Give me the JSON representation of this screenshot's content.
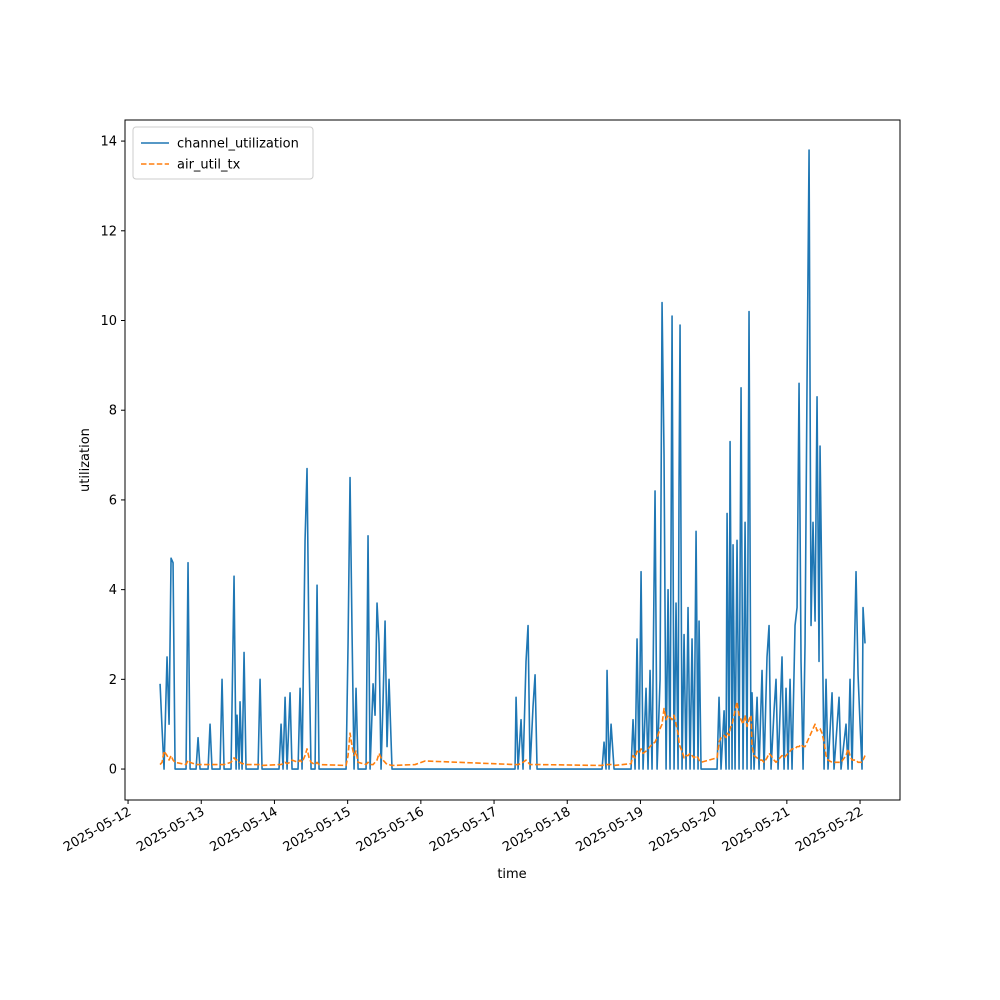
{
  "chart_data": {
    "type": "line",
    "xlabel": "time",
    "ylabel": "utilization",
    "legend": "upper left",
    "xlim": [
      "2025-05-11 23:00",
      "2025-05-22 13:06"
    ],
    "xticks": [
      "2025-05-12",
      "2025-05-13",
      "2025-05-14",
      "2025-05-15",
      "2025-05-16",
      "2025-05-17",
      "2025-05-18",
      "2025-05-19",
      "2025-05-20",
      "2025-05-21",
      "2025-05-22"
    ],
    "ylim": [
      -0.69,
      14.47
    ],
    "yticks": [
      0,
      2,
      4,
      6,
      8,
      10,
      12,
      14
    ],
    "x": [
      "2025-05-12 10:30",
      "2025-05-12 11:09",
      "2025-05-12 11:48",
      "2025-05-12 12:47",
      "2025-05-12 13:27",
      "2025-05-12 14:06",
      "2025-05-12 14:45",
      "2025-05-12 15:25",
      "2025-05-12 19:01",
      "2025-05-12 19:40",
      "2025-05-12 20:20",
      "2025-05-12 22:18",
      "2025-05-12 22:57",
      "2025-05-12 23:36",
      "2025-05-13 02:14",
      "2025-05-13 02:53",
      "2025-05-13 03:32",
      "2025-05-13 06:10",
      "2025-05-13 06:49",
      "2025-05-13 07:29",
      "2025-05-13 09:46",
      "2025-05-13 10:45",
      "2025-05-13 11:25",
      "2025-05-13 11:44",
      "2025-05-13 12:24",
      "2025-05-13 12:43",
      "2025-05-13 13:23",
      "2025-05-13 14:02",
      "2025-05-13 14:41",
      "2025-05-13 18:37",
      "2025-05-13 19:17",
      "2025-05-13 19:56",
      "2025-05-14 01:30",
      "2025-05-14 02:10",
      "2025-05-14 02:49",
      "2025-05-14 03:29",
      "2025-05-14 04:08",
      "2025-05-14 05:07",
      "2025-05-14 05:46",
      "2025-05-14 07:44",
      "2025-05-14 08:24",
      "2025-05-14 09:03",
      "2025-05-14 10:02",
      "2025-05-14 10:41",
      "2025-05-14 11:21",
      "2025-05-14 12:00",
      "2025-05-14 13:19",
      "2025-05-14 13:58",
      "2025-05-14 14:37",
      "2025-05-14 23:29",
      "2025-05-15 00:08",
      "2025-05-15 00:47",
      "2025-05-15 01:27",
      "2025-05-15 02:06",
      "2025-05-15 02:45",
      "2025-05-15 03:25",
      "2025-05-15 06:02",
      "2025-05-15 06:41",
      "2025-05-15 07:21",
      "2025-05-15 08:20",
      "2025-05-15 08:59",
      "2025-05-15 09:38",
      "2025-05-15 10:18",
      "2025-05-15 10:57",
      "2025-05-15 11:36",
      "2025-05-15 12:16",
      "2025-05-15 12:55",
      "2025-05-15 13:34",
      "2025-05-15 14:33",
      "2025-05-15 22:06",
      "2025-05-16 01:23",
      "2025-05-17 06:53",
      "2025-05-17 07:13",
      "2025-05-17 07:52",
      "2025-05-17 08:51",
      "2025-05-17 09:30",
      "2025-05-17 10:29",
      "2025-05-17 11:09",
      "2025-05-17 11:48",
      "2025-05-17 12:47",
      "2025-05-17 13:27",
      "2025-05-17 14:06",
      "2025-05-18 11:25",
      "2025-05-18 12:04",
      "2025-05-18 12:43",
      "2025-05-18 13:03",
      "2025-05-18 13:42",
      "2025-05-18 14:22",
      "2025-05-18 15:21",
      "2025-05-18 20:55",
      "2025-05-18 21:34",
      "2025-05-18 22:14",
      "2025-05-18 22:53",
      "2025-05-18 23:32",
      "2025-05-19 00:12",
      "2025-05-19 00:51",
      "2025-05-19 01:50",
      "2025-05-19 02:29",
      "2025-05-19 03:09",
      "2025-05-19 03:48",
      "2025-05-19 04:47",
      "2025-05-19 05:27",
      "2025-05-19 06:26",
      "2025-05-19 07:05",
      "2025-05-19 07:44",
      "2025-05-19 08:24",
      "2025-05-19 09:03",
      "2025-05-19 09:42",
      "2025-05-19 10:22",
      "2025-05-19 11:01",
      "2025-05-19 11:40",
      "2025-05-19 12:20",
      "2025-05-19 12:39",
      "2025-05-19 12:59",
      "2025-05-19 13:38",
      "2025-05-19 14:18",
      "2025-05-19 14:57",
      "2025-05-19 15:36",
      "2025-05-19 16:16",
      "2025-05-19 16:55",
      "2025-05-19 17:34",
      "2025-05-19 18:14",
      "2025-05-19 18:53",
      "2025-05-19 19:13",
      "2025-05-19 19:52",
      "2025-05-20 01:07",
      "2025-05-20 01:46",
      "2025-05-20 02:25",
      "2025-05-20 03:25",
      "2025-05-20 04:04",
      "2025-05-20 04:24",
      "2025-05-20 05:03",
      "2025-05-20 05:23",
      "2025-05-20 06:02",
      "2025-05-20 06:22",
      "2025-05-20 07:01",
      "2025-05-20 07:40",
      "2025-05-20 08:20",
      "2025-05-20 08:59",
      "2025-05-20 09:38",
      "2025-05-20 10:18",
      "2025-05-20 10:57",
      "2025-05-20 11:36",
      "2025-05-20 12:16",
      "2025-05-20 12:35",
      "2025-05-20 13:15",
      "2025-05-20 14:14",
      "2025-05-20 14:53",
      "2025-05-20 15:52",
      "2025-05-20 16:31",
      "2025-05-20 17:30",
      "2025-05-20 18:10",
      "2025-05-20 18:49",
      "2025-05-20 19:48",
      "2025-05-20 20:27",
      "2025-05-20 21:07",
      "2025-05-20 22:25",
      "2025-05-20 23:05",
      "2025-05-20 23:44",
      "2025-05-21 00:24",
      "2025-05-21 01:03",
      "2025-05-21 01:42",
      "2025-05-21 02:41",
      "2025-05-21 03:21",
      "2025-05-21 04:00",
      "2025-05-21 04:39",
      "2025-05-21 05:19",
      "2025-05-21 05:58",
      "2025-05-21 06:37",
      "2025-05-21 07:17",
      "2025-05-21 07:56",
      "2025-05-21 08:35",
      "2025-05-21 09:15",
      "2025-05-21 09:54",
      "2025-05-21 10:33",
      "2025-05-21 10:53",
      "2025-05-21 11:32",
      "2025-05-21 12:12",
      "2025-05-21 12:51",
      "2025-05-21 13:30",
      "2025-05-21 14:49",
      "2025-05-21 15:28",
      "2025-05-21 17:07",
      "2025-05-21 17:46",
      "2025-05-21 19:24",
      "2025-05-21 20:04",
      "2025-05-21 20:43",
      "2025-05-21 21:23",
      "2025-05-21 22:41",
      "2025-05-21 23:21",
      "2025-05-22 00:00",
      "2025-05-22 00:39",
      "2025-05-22 00:59",
      "2025-05-22 01:38"
    ],
    "series": [
      {
        "name": "channel_utilization",
        "color": "#1f77b4",
        "style": "solid",
        "values": [
          1.9,
          0.9,
          0,
          2.5,
          1.0,
          4.7,
          4.6,
          0,
          0,
          4.6,
          0,
          0,
          0.7,
          0,
          0,
          1.0,
          0,
          0,
          2.0,
          0,
          0,
          4.3,
          0,
          1.2,
          0,
          1.5,
          0,
          2.6,
          0,
          0,
          2.0,
          0,
          0,
          1.0,
          0,
          1.6,
          0,
          1.7,
          0,
          0,
          1.8,
          0,
          5.1,
          6.7,
          2.5,
          0,
          0,
          4.1,
          0,
          0,
          2.8,
          6.5,
          3,
          0,
          1.8,
          0,
          0,
          5.2,
          0,
          1.9,
          1.2,
          3.7,
          2.8,
          0,
          1.5,
          3.3,
          0.5,
          2.0,
          0,
          0,
          0,
          0,
          1.6,
          0,
          1.1,
          0,
          2.4,
          3.2,
          0,
          1.4,
          2.1,
          0,
          0,
          0.6,
          0,
          2.2,
          0,
          1.0,
          0,
          0,
          1.1,
          0,
          2.9,
          0,
          4.4,
          0,
          1.8,
          0,
          2.2,
          0,
          6.2,
          0,
          2.0,
          10.4,
          7.0,
          0,
          4.0,
          0,
          10.1,
          0,
          3.7,
          0,
          6.3,
          9.9,
          0,
          3.0,
          0,
          3.6,
          0,
          2.9,
          0,
          5.3,
          0,
          3.3,
          0,
          0,
          1.6,
          0,
          1.3,
          0,
          5.7,
          0,
          7.3,
          0,
          5.0,
          0,
          5.1,
          0,
          8.5,
          0,
          5.5,
          0,
          10.2,
          0,
          1.7,
          0,
          1.6,
          0,
          2.2,
          0,
          2.5,
          3.2,
          0,
          1.3,
          2.0,
          0,
          2.5,
          0,
          1.8,
          0,
          2.0,
          0,
          3.2,
          3.6,
          8.6,
          2.4,
          0,
          2.8,
          8.6,
          13.8,
          3.2,
          5.5,
          3.3,
          8.3,
          2.4,
          7.2,
          3.7,
          0,
          2.0,
          0,
          1.7,
          0,
          1.6,
          0,
          1.0,
          0,
          2.0,
          0,
          4.4,
          2.1,
          1.0,
          0,
          3.6,
          2.8
        ]
      },
      {
        "name": "air_util_tx",
        "color": "#ff7f0e",
        "style": "dashed",
        "values": [
          0.1,
          0.15,
          0.4,
          0.3,
          0.2,
          0.3,
          0.2,
          0.15,
          0.1,
          0.2,
          0.15,
          0.1,
          0.1,
          0.1,
          0.1,
          0.1,
          0.1,
          0.1,
          0.1,
          0.1,
          0.15,
          0.25,
          0.2,
          0.2,
          0.15,
          0.15,
          0.12,
          0.12,
          0.1,
          0.1,
          0.1,
          0.08,
          0.1,
          0.1,
          0.12,
          0.15,
          0.12,
          0.15,
          0.2,
          0.15,
          0.2,
          0.15,
          0.3,
          0.45,
          0.25,
          0.15,
          0.1,
          0.15,
          0.1,
          0.08,
          0.3,
          0.8,
          0.5,
          0.3,
          0.4,
          0.15,
          0.1,
          0.15,
          0.1,
          0.1,
          0.15,
          0.2,
          0.35,
          0.25,
          0.2,
          0.15,
          0.1,
          0.1,
          0.08,
          0.1,
          0.18,
          0.1,
          0.1,
          0.1,
          0.12,
          0.15,
          0.2,
          0.15,
          0.1,
          0.1,
          0.1,
          0.1,
          0.08,
          0.1,
          0.1,
          0.1,
          0.1,
          0.1,
          0.08,
          0.12,
          0.3,
          0.25,
          0.4,
          0.35,
          0.45,
          0.35,
          0.4,
          0.45,
          0.5,
          0.55,
          0.6,
          0.7,
          0.9,
          1.0,
          1.35,
          1.1,
          1.2,
          1.15,
          1.1,
          1.2,
          1.0,
          0.8,
          0.6,
          0.5,
          0.4,
          0.25,
          0.3,
          0.3,
          0.35,
          0.3,
          0.25,
          0.3,
          0.25,
          0.2,
          0.15,
          0.25,
          0.6,
          0.7,
          0.75,
          0.7,
          0.8,
          0.75,
          0.9,
          1.0,
          1.1,
          1.3,
          1.5,
          1.2,
          1.1,
          1.0,
          1.2,
          0.95,
          1.1,
          1.2,
          0.5,
          0.3,
          0.25,
          0.2,
          0.2,
          0.15,
          0.25,
          0.35,
          0.3,
          0.2,
          0.15,
          0.2,
          0.3,
          0.25,
          0.3,
          0.35,
          0.4,
          0.45,
          0.45,
          0.5,
          0.5,
          0.55,
          0.5,
          0.5,
          0.6,
          0.7,
          0.8,
          0.9,
          1.0,
          0.85,
          0.9,
          0.9,
          0.8,
          0.6,
          0.3,
          0.2,
          0.15,
          0.15,
          0.15,
          0.15,
          0.3,
          0.45,
          0.3,
          0.2,
          0.2,
          0.15,
          0.15,
          0.15,
          0.2,
          0.3
        ]
      }
    ]
  }
}
